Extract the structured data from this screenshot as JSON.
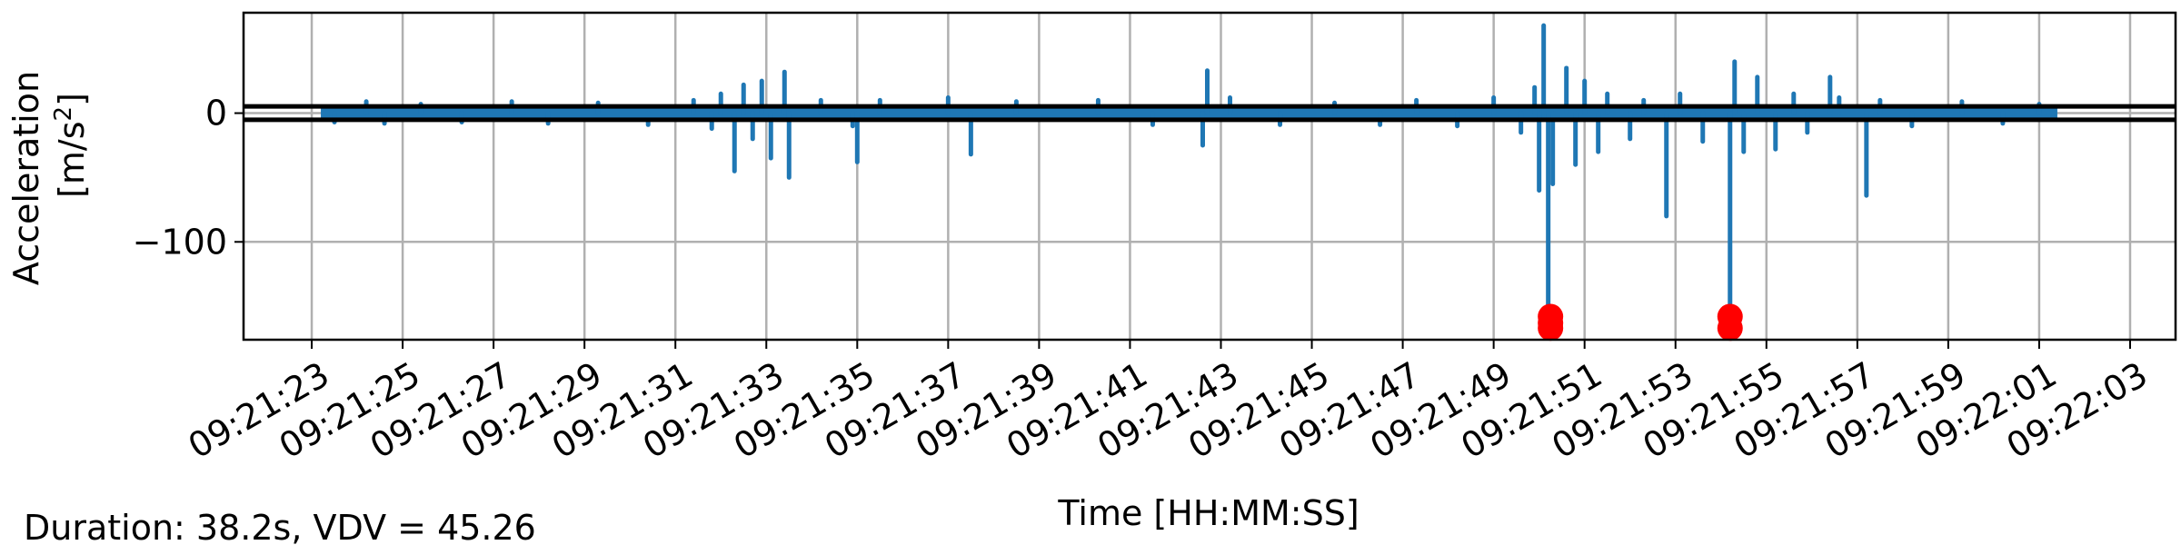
{
  "chart_data": {
    "type": "line",
    "title": "",
    "xlabel": "Time [HH:MM:SS]",
    "ylabel_line1": "Acceleration",
    "ylabel_line2": "[m/s",
    "ylabel_sup": "2",
    "ylabel_close": "]",
    "footer_note": "Duration: 38.2s, VDV = 45.26",
    "grid": true,
    "xlim": [
      "09:21:21.5",
      "09:22:04"
    ],
    "ylim": [
      -176,
      78
    ],
    "x_ticks": [
      "09:21:23",
      "09:21:25",
      "09:21:27",
      "09:21:29",
      "09:21:31",
      "09:21:33",
      "09:21:35",
      "09:21:37",
      "09:21:39",
      "09:21:41",
      "09:21:43",
      "09:21:45",
      "09:21:47",
      "09:21:49",
      "09:21:51",
      "09:21:53",
      "09:21:55",
      "09:21:57",
      "09:21:59",
      "09:22:01",
      "09:22:03"
    ],
    "y_ticks": [
      0,
      -100
    ],
    "y_tick_labels": [
      "0",
      "−100"
    ],
    "threshold_lines": [
      5.2,
      -5.2
    ],
    "signal_range": [
      "09:21:23.2",
      "09:22:01.4"
    ],
    "spikes": [
      {
        "t": "09:21:23.5",
        "v": -7
      },
      {
        "t": "09:21:24.2",
        "v": 9
      },
      {
        "t": "09:21:24.6",
        "v": -8
      },
      {
        "t": "09:21:25.4",
        "v": 7
      },
      {
        "t": "09:21:26.3",
        "v": -7
      },
      {
        "t": "09:21:27.4",
        "v": 9
      },
      {
        "t": "09:21:28.2",
        "v": -8
      },
      {
        "t": "09:21:29.3",
        "v": 8
      },
      {
        "t": "09:21:30.4",
        "v": -9
      },
      {
        "t": "09:21:31.4",
        "v": 10
      },
      {
        "t": "09:21:31.8",
        "v": -12
      },
      {
        "t": "09:21:32.0",
        "v": 15
      },
      {
        "t": "09:21:32.3",
        "v": -45
      },
      {
        "t": "09:21:32.5",
        "v": 22
      },
      {
        "t": "09:21:32.7",
        "v": -20
      },
      {
        "t": "09:21:32.9",
        "v": 25
      },
      {
        "t": "09:21:33.1",
        "v": -35
      },
      {
        "t": "09:21:33.4",
        "v": 32
      },
      {
        "t": "09:21:33.5",
        "v": -50
      },
      {
        "t": "09:21:34.2",
        "v": 10
      },
      {
        "t": "09:21:34.9",
        "v": -10
      },
      {
        "t": "09:21:35.0",
        "v": -38
      },
      {
        "t": "09:21:35.5",
        "v": 10
      },
      {
        "t": "09:21:37.0",
        "v": 12
      },
      {
        "t": "09:21:37.5",
        "v": -32
      },
      {
        "t": "09:21:38.5",
        "v": 9
      },
      {
        "t": "09:21:40.3",
        "v": 10
      },
      {
        "t": "09:21:41.5",
        "v": -9
      },
      {
        "t": "09:21:42.6",
        "v": -25
      },
      {
        "t": "09:21:42.7",
        "v": 33
      },
      {
        "t": "09:21:43.2",
        "v": 12
      },
      {
        "t": "09:21:44.3",
        "v": -9
      },
      {
        "t": "09:21:45.5",
        "v": 8
      },
      {
        "t": "09:21:46.5",
        "v": -9
      },
      {
        "t": "09:21:47.3",
        "v": 10
      },
      {
        "t": "09:21:48.2",
        "v": -10
      },
      {
        "t": "09:21:49.0",
        "v": 12
      },
      {
        "t": "09:21:49.6",
        "v": -15
      },
      {
        "t": "09:21:49.9",
        "v": 20
      },
      {
        "t": "09:21:50.0",
        "v": -60
      },
      {
        "t": "09:21:50.1",
        "v": 68
      },
      {
        "t": "09:21:50.2",
        "v": -165
      },
      {
        "t": "09:21:50.3",
        "v": -55
      },
      {
        "t": "09:21:50.6",
        "v": 35
      },
      {
        "t": "09:21:50.8",
        "v": -40
      },
      {
        "t": "09:21:51.0",
        "v": 25
      },
      {
        "t": "09:21:51.3",
        "v": -30
      },
      {
        "t": "09:21:51.5",
        "v": 15
      },
      {
        "t": "09:21:52.0",
        "v": -20
      },
      {
        "t": "09:21:52.3",
        "v": 10
      },
      {
        "t": "09:21:52.8",
        "v": -80
      },
      {
        "t": "09:21:53.1",
        "v": 15
      },
      {
        "t": "09:21:53.6",
        "v": -22
      },
      {
        "t": "09:21:54.2",
        "v": -170
      },
      {
        "t": "09:21:54.3",
        "v": 40
      },
      {
        "t": "09:21:54.5",
        "v": -30
      },
      {
        "t": "09:21:54.8",
        "v": 28
      },
      {
        "t": "09:21:55.2",
        "v": -28
      },
      {
        "t": "09:21:55.6",
        "v": 15
      },
      {
        "t": "09:21:55.9",
        "v": -15
      },
      {
        "t": "09:21:56.4",
        "v": 28
      },
      {
        "t": "09:21:56.6",
        "v": 12
      },
      {
        "t": "09:21:57.2",
        "v": -64
      },
      {
        "t": "09:21:57.5",
        "v": 10
      },
      {
        "t": "09:21:58.2",
        "v": -10
      },
      {
        "t": "09:21:59.3",
        "v": 9
      },
      {
        "t": "09:22:00.2",
        "v": -8
      },
      {
        "t": "09:22:01.0",
        "v": 7
      }
    ],
    "peak_markers": [
      {
        "t": "09:21:50.25",
        "v": -158
      },
      {
        "t": "09:21:50.25",
        "v": -163
      },
      {
        "t": "09:21:50.25",
        "v": -167
      },
      {
        "t": "09:21:54.2",
        "v": -158
      },
      {
        "t": "09:21:54.2",
        "v": -167
      }
    ],
    "colors": {
      "signal": "#1f77b4",
      "threshold": "#000000",
      "marker": "#ff0000",
      "grid": "#b0b0b0"
    }
  }
}
